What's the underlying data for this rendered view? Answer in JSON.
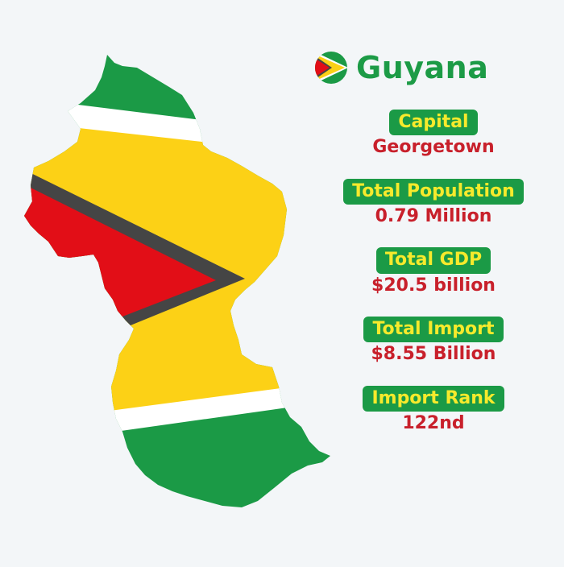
{
  "country": {
    "name": "Guyana",
    "flag_icon": "guyana-flag-icon"
  },
  "colors": {
    "green": "#1b9a46",
    "yellow_label": "#f6ea2c",
    "value_red": "#c8202b",
    "flag_yellow": "#fcd116",
    "flag_red": "#e20e17",
    "flag_black": "#454545",
    "background": "#f3f6f8"
  },
  "stats": [
    {
      "label": "Capital",
      "value": "Georgetown"
    },
    {
      "label": "Total Population",
      "value": "0.79 Million"
    },
    {
      "label": "Total GDP",
      "value": "$20.5 billion"
    },
    {
      "label": "Total Import",
      "value": "$8.55 Billion"
    },
    {
      "label": "Import Rank",
      "value": "122nd"
    }
  ]
}
